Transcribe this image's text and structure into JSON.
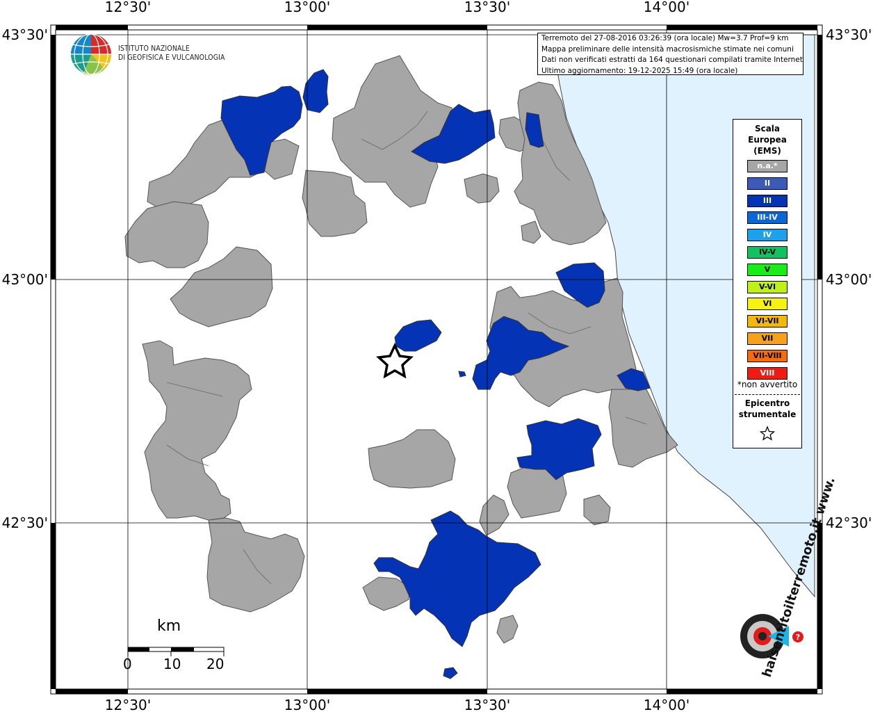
{
  "colors": {
    "sea": "#e0f2fd",
    "not_felt": "#a6a6a6",
    "intensity_III": "#0433b6",
    "border": "#555555"
  },
  "axes": {
    "top_labels": [
      "12°30'",
      "13°00'",
      "13°30'",
      "14°00'"
    ],
    "bottom_labels": [
      "12°30'",
      "13°00'",
      "13°30'",
      "14°00'"
    ],
    "left_labels": [
      "43°30'",
      "43°00'",
      "42°30'"
    ],
    "right_labels": [
      "43°30'",
      "43°00'",
      "42°30'"
    ]
  },
  "logo": {
    "name": "istituto-nazionale-geofisica-vulcanologia-logo",
    "line1": "ISTITUTO NAZIONALE",
    "line2": "DI GEOFISICA E VULCANOLOGIA"
  },
  "info": {
    "line1": "Terremoto del 27-08-2016 03:26:39 (ora locale) Mw=3.7 Prof=9 km",
    "line2": "Mappa preliminare delle intensità macrosismiche stimate nei comuni",
    "line3": "Dati non verificati estratti da 164 questionari compilati tramite Internet.",
    "line4": "Ultimo aggiornamento: 19-12-2025 15:49 (ora locale)"
  },
  "legend": {
    "title_line1": "Scala",
    "title_line2": "Europea",
    "title_line3": "(EMS)",
    "items": [
      {
        "label": "n.a.*",
        "color": "#a6a6a6",
        "text_color": "#ffffff"
      },
      {
        "label": "II",
        "color": "#3d5ab4",
        "text_color": "#ffffff"
      },
      {
        "label": "III",
        "color": "#0433b6",
        "text_color": "#ffffff"
      },
      {
        "label": "III-IV",
        "color": "#0b66d6",
        "text_color": "#ffffff"
      },
      {
        "label": "IV",
        "color": "#1da1e8",
        "text_color": "#ffffff"
      },
      {
        "label": "IV-V",
        "color": "#10c262",
        "text_color": "#000000"
      },
      {
        "label": "V",
        "color": "#17ee17",
        "text_color": "#000000"
      },
      {
        "label": "V-VI",
        "color": "#bff018",
        "text_color": "#000000"
      },
      {
        "label": "VI",
        "color": "#f8f213",
        "text_color": "#000000"
      },
      {
        "label": "VI-VII",
        "color": "#f3b80e",
        "text_color": "#000000"
      },
      {
        "label": "VII",
        "color": "#f5a21a",
        "text_color": "#000000"
      },
      {
        "label": "VII-VIII",
        "color": "#f56c0e",
        "text_color": "#000000"
      },
      {
        "label": "VIII",
        "color": "#f01b12",
        "text_color": "#ffffff"
      }
    ],
    "note": "*non avvertito",
    "epicenter_line1": "Epicentro",
    "epicenter_line2": "strumentale"
  },
  "scale_bar": {
    "unit": "km",
    "ticks": [
      "0",
      "10",
      "20"
    ]
  },
  "watermark": {
    "name": "haisentito-ilterremoto-logo",
    "text": "haisentitoilterremoto.it www."
  }
}
